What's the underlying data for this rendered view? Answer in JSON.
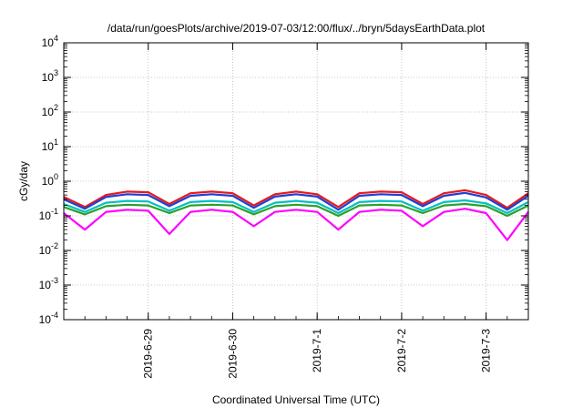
{
  "chart_data": {
    "type": "line",
    "title": "/data/run/goesPlots/archive/2019-07-03/12:00/flux/../bryn/5daysEarthData.plot",
    "xlabel": "Coordinated Universal Time (UTC)",
    "ylabel": "cGy/day",
    "yscale": "log",
    "ylim": [
      0.0001,
      10000
    ],
    "y_ticks": [
      {
        "value": 0.0001,
        "base": "10",
        "exp": "-4"
      },
      {
        "value": 0.001,
        "base": "10",
        "exp": "-3"
      },
      {
        "value": 0.01,
        "base": "10",
        "exp": "-2"
      },
      {
        "value": 0.1,
        "base": "10",
        "exp": "-1"
      },
      {
        "value": 1,
        "base": "10",
        "exp": "0"
      },
      {
        "value": 10,
        "base": "10",
        "exp": "1"
      },
      {
        "value": 100,
        "base": "10",
        "exp": "2"
      },
      {
        "value": 1000,
        "base": "10",
        "exp": "3"
      },
      {
        "value": 10000,
        "base": "10",
        "exp": "4"
      }
    ],
    "xlim": [
      "2019-06-28T00:00",
      "2019-07-03T12:00"
    ],
    "x_ticks": [
      "2019-6-29",
      "2019-6-30",
      "2019-7-1",
      "2019-7-2",
      "2019-7-3"
    ],
    "grid": true,
    "series": [
      {
        "color": "#e41a1c",
        "x": [
          "2019-06-28T00:00",
          "2019-06-28T06:00",
          "2019-06-28T12:00",
          "2019-06-28T18:00",
          "2019-06-29T00:00",
          "2019-06-29T06:00",
          "2019-06-29T12:00",
          "2019-06-29T18:00",
          "2019-06-30T00:00",
          "2019-06-30T06:00",
          "2019-06-30T12:00",
          "2019-06-30T18:00",
          "2019-07-01T00:00",
          "2019-07-01T06:00",
          "2019-07-01T12:00",
          "2019-07-01T18:00",
          "2019-07-02T00:00",
          "2019-07-02T06:00",
          "2019-07-02T12:00",
          "2019-07-02T18:00",
          "2019-07-03T00:00",
          "2019-07-03T06:00",
          "2019-07-03T12:00"
        ],
        "values": [
          0.35,
          0.18,
          0.4,
          0.5,
          0.48,
          0.22,
          0.45,
          0.5,
          0.45,
          0.2,
          0.42,
          0.5,
          0.42,
          0.18,
          0.45,
          0.5,
          0.48,
          0.22,
          0.45,
          0.55,
          0.4,
          0.17,
          0.45
        ]
      },
      {
        "color": "#1f3fd6",
        "x": [
          "2019-06-28T00:00",
          "2019-06-28T06:00",
          "2019-06-28T12:00",
          "2019-06-28T18:00",
          "2019-06-29T00:00",
          "2019-06-29T06:00",
          "2019-06-29T12:00",
          "2019-06-29T18:00",
          "2019-06-30T00:00",
          "2019-06-30T06:00",
          "2019-06-30T12:00",
          "2019-06-30T18:00",
          "2019-07-01T00:00",
          "2019-07-01T06:00",
          "2019-07-01T12:00",
          "2019-07-01T18:00",
          "2019-07-02T00:00",
          "2019-07-02T06:00",
          "2019-07-02T12:00",
          "2019-07-02T18:00",
          "2019-07-03T00:00",
          "2019-07-03T06:00",
          "2019-07-03T12:00"
        ],
        "values": [
          0.3,
          0.16,
          0.35,
          0.42,
          0.4,
          0.19,
          0.38,
          0.42,
          0.38,
          0.17,
          0.36,
          0.42,
          0.36,
          0.15,
          0.38,
          0.42,
          0.4,
          0.19,
          0.38,
          0.46,
          0.34,
          0.15,
          0.38
        ]
      },
      {
        "color": "#00c0c0",
        "x": [
          "2019-06-28T00:00",
          "2019-06-28T06:00",
          "2019-06-28T12:00",
          "2019-06-28T18:00",
          "2019-06-29T00:00",
          "2019-06-29T06:00",
          "2019-06-29T12:00",
          "2019-06-29T18:00",
          "2019-06-30T00:00",
          "2019-06-30T06:00",
          "2019-06-30T12:00",
          "2019-06-30T18:00",
          "2019-07-01T00:00",
          "2019-07-01T06:00",
          "2019-07-01T12:00",
          "2019-07-01T18:00",
          "2019-07-02T00:00",
          "2019-07-02T06:00",
          "2019-07-02T12:00",
          "2019-07-02T18:00",
          "2019-07-03T00:00",
          "2019-07-03T06:00",
          "2019-07-03T12:00"
        ],
        "values": [
          0.22,
          0.13,
          0.24,
          0.27,
          0.26,
          0.14,
          0.25,
          0.27,
          0.25,
          0.13,
          0.24,
          0.27,
          0.24,
          0.12,
          0.25,
          0.27,
          0.26,
          0.14,
          0.25,
          0.28,
          0.23,
          0.12,
          0.25
        ]
      },
      {
        "color": "#2ca02c",
        "x": [
          "2019-06-28T00:00",
          "2019-06-28T06:00",
          "2019-06-28T12:00",
          "2019-06-28T18:00",
          "2019-06-29T00:00",
          "2019-06-29T06:00",
          "2019-06-29T12:00",
          "2019-06-29T18:00",
          "2019-06-30T00:00",
          "2019-06-30T06:00",
          "2019-06-30T12:00",
          "2019-06-30T18:00",
          "2019-07-01T00:00",
          "2019-07-01T06:00",
          "2019-07-01T12:00",
          "2019-07-01T18:00",
          "2019-07-02T00:00",
          "2019-07-02T06:00",
          "2019-07-02T12:00",
          "2019-07-02T18:00",
          "2019-07-03T00:00",
          "2019-07-03T06:00",
          "2019-07-03T12:00"
        ],
        "values": [
          0.18,
          0.11,
          0.19,
          0.21,
          0.2,
          0.12,
          0.2,
          0.21,
          0.2,
          0.11,
          0.19,
          0.21,
          0.19,
          0.1,
          0.2,
          0.21,
          0.2,
          0.12,
          0.2,
          0.22,
          0.19,
          0.1,
          0.2
        ]
      },
      {
        "color": "#ff00ff",
        "x": [
          "2019-06-28T00:00",
          "2019-06-28T06:00",
          "2019-06-28T12:00",
          "2019-06-28T18:00",
          "2019-06-29T00:00",
          "2019-06-29T06:00",
          "2019-06-29T12:00",
          "2019-06-29T18:00",
          "2019-06-30T00:00",
          "2019-06-30T06:00",
          "2019-06-30T12:00",
          "2019-06-30T18:00",
          "2019-07-01T00:00",
          "2019-07-01T06:00",
          "2019-07-01T12:00",
          "2019-07-01T18:00",
          "2019-07-02T00:00",
          "2019-07-02T06:00",
          "2019-07-02T12:00",
          "2019-07-02T18:00",
          "2019-07-03T00:00",
          "2019-07-03T06:00",
          "2019-07-03T12:00"
        ],
        "values": [
          0.12,
          0.04,
          0.13,
          0.15,
          0.14,
          0.03,
          0.13,
          0.15,
          0.13,
          0.05,
          0.13,
          0.15,
          0.13,
          0.04,
          0.13,
          0.15,
          0.14,
          0.05,
          0.13,
          0.16,
          0.12,
          0.02,
          0.13
        ]
      }
    ]
  }
}
